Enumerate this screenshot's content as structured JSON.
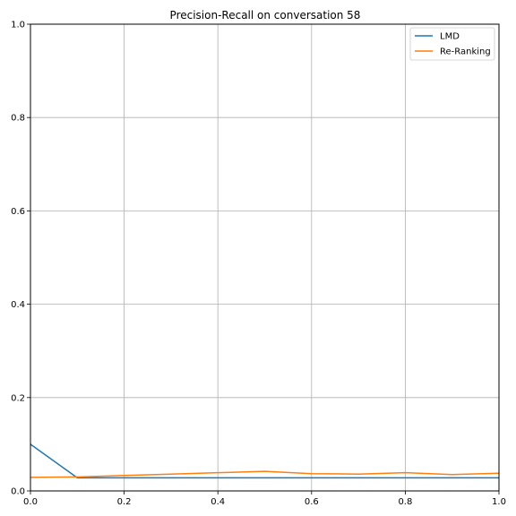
{
  "chart_data": {
    "type": "line",
    "title": "Precision-Recall on conversation 58",
    "xlabel": "",
    "ylabel": "",
    "xlim": [
      0.0,
      1.0
    ],
    "ylim": [
      0.0,
      1.0
    ],
    "grid": true,
    "legend_position": "top-right",
    "x_ticks": [
      "0.0",
      "0.2",
      "0.4",
      "0.6",
      "0.8",
      "1.0"
    ],
    "y_ticks": [
      "0.0",
      "0.2",
      "0.4",
      "0.6",
      "0.8",
      "1.0"
    ],
    "x": [
      0.0,
      0.1,
      0.2,
      0.3,
      0.4,
      0.5,
      0.6,
      0.7,
      0.8,
      0.9,
      1.0
    ],
    "series": [
      {
        "name": "LMD",
        "color": "#1f77b4",
        "values": [
          0.1,
          0.028,
          0.028,
          0.028,
          0.028,
          0.028,
          0.028,
          0.028,
          0.028,
          0.028,
          0.028
        ]
      },
      {
        "name": "Re-Ranking",
        "color": "#ff7f0e",
        "values": [
          0.029,
          0.03,
          0.033,
          0.036,
          0.039,
          0.042,
          0.037,
          0.036,
          0.039,
          0.035,
          0.038
        ]
      }
    ]
  }
}
